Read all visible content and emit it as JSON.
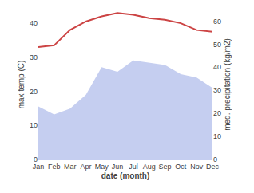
{
  "chart_data": {
    "type": "line",
    "xlabel": "date (month)",
    "ylabel": "max temp (C)",
    "y2label": "med. precipitation (kg/m2)",
    "categories": [
      "Jan",
      "Feb",
      "Mar",
      "Apr",
      "May",
      "Jun",
      "Jul",
      "Aug",
      "Sep",
      "Oct",
      "Nov",
      "Dec"
    ],
    "series": [
      {
        "type": "line",
        "color": "#cc4444",
        "values": [
          33,
          33.5,
          38,
          40.5,
          42,
          43,
          42.5,
          41.5,
          41,
          40,
          38,
          37.5
        ]
      },
      {
        "type": "area",
        "color": "#c5cef0",
        "axis": "y2",
        "values": [
          23,
          19.5,
          22,
          28,
          40,
          38,
          43,
          42,
          41,
          37,
          35.5,
          31
        ]
      }
    ],
    "ylim": [
      0,
      44
    ],
    "yticks": [
      0,
      10,
      20,
      30,
      40
    ],
    "y2lim": [
      0,
      65
    ],
    "y2ticks": [
      0,
      10,
      20,
      30,
      40,
      50,
      60
    ],
    "grid": false
  }
}
